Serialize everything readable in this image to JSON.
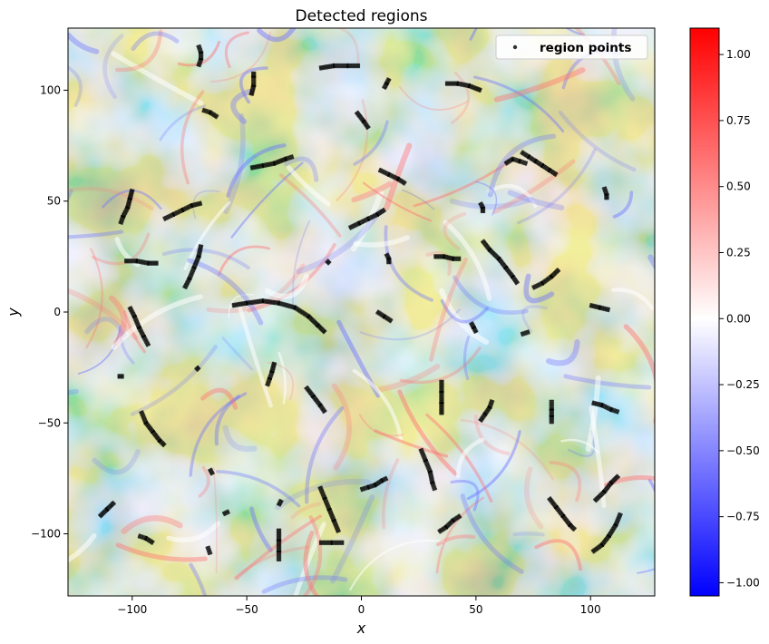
{
  "chart_data": {
    "type": "scatter",
    "title": "Detected regions",
    "xlabel": "x",
    "ylabel": "y",
    "xlim": [
      -128,
      128
    ],
    "ylim": [
      -128,
      128
    ],
    "xticks": [
      -100,
      -50,
      0,
      50,
      100
    ],
    "yticks": [
      -100,
      -50,
      0,
      50,
      100
    ],
    "xtick_labels": [
      "−100",
      "−50",
      "0",
      "50",
      "100"
    ],
    "ytick_labels": [
      "−100",
      "−50",
      "0",
      "50",
      "100"
    ],
    "legend": {
      "label": "region points",
      "placement": "upper-right"
    },
    "colormap": "bwr",
    "colorbar": {
      "range": [
        -1.05,
        1.1
      ],
      "ticks": [
        1.0,
        0.75,
        0.5,
        0.25,
        0.0,
        -0.25,
        -0.5,
        -0.75,
        -1.0
      ],
      "tick_labels": [
        "1.00",
        "0.75",
        "0.50",
        "0.25",
        "0.00",
        "−0.25",
        "−0.50",
        "−0.75",
        "−1.00"
      ],
      "color_min": "#0000ff",
      "color_mid": "#ffffff",
      "color_max": "#ff0000"
    },
    "point_color": "#000000",
    "regions": [
      {
        "points": [
          [
            -71,
            111
          ],
          [
            -70,
            114
          ],
          [
            -70,
            117
          ],
          [
            -71,
            120
          ]
        ]
      },
      {
        "points": [
          [
            -18,
            110
          ],
          [
            -12,
            111
          ],
          [
            -6,
            111
          ],
          [
            -1,
            111
          ]
        ]
      },
      {
        "points": [
          [
            -48,
            98
          ],
          [
            -47,
            102
          ],
          [
            -47,
            106
          ],
          [
            -47,
            108
          ]
        ]
      },
      {
        "points": [
          [
            -69,
            91
          ],
          [
            -66,
            90
          ],
          [
            -63,
            88
          ]
        ]
      },
      {
        "points": [
          [
            -2,
            90
          ],
          [
            1,
            86
          ],
          [
            3,
            83
          ]
        ]
      },
      {
        "points": [
          [
            10,
            101
          ],
          [
            11,
            103
          ],
          [
            12,
            105
          ]
        ]
      },
      {
        "points": [
          [
            37,
            103
          ],
          [
            42,
            103
          ],
          [
            47,
            102
          ],
          [
            52,
            100
          ]
        ]
      },
      {
        "points": [
          [
            -48,
            65
          ],
          [
            -43,
            66
          ],
          [
            -38,
            67
          ],
          [
            -33,
            69
          ],
          [
            -30,
            70
          ]
        ]
      },
      {
        "points": [
          [
            8,
            64
          ],
          [
            12,
            62
          ],
          [
            16,
            60
          ],
          [
            19,
            58
          ]
        ]
      },
      {
        "points": [
          [
            63,
            67
          ],
          [
            66,
            69
          ],
          [
            69,
            68
          ],
          [
            72,
            67
          ]
        ]
      },
      {
        "points": [
          [
            70,
            72
          ],
          [
            73,
            70
          ],
          [
            76,
            68
          ],
          [
            79,
            66
          ],
          [
            82,
            64
          ],
          [
            85,
            62
          ]
        ]
      },
      {
        "points": [
          [
            -100,
            55
          ],
          [
            -101,
            51
          ],
          [
            -102,
            47
          ],
          [
            -104,
            43
          ],
          [
            -105,
            40
          ]
        ]
      },
      {
        "points": [
          [
            -86,
            42
          ],
          [
            -82,
            44
          ],
          [
            -78,
            46
          ],
          [
            -74,
            48
          ],
          [
            -70,
            49
          ]
        ]
      },
      {
        "points": [
          [
            -5,
            38
          ],
          [
            -1,
            40
          ],
          [
            3,
            42
          ],
          [
            7,
            44
          ],
          [
            10,
            46
          ]
        ]
      },
      {
        "points": [
          [
            52,
            49
          ],
          [
            53,
            47
          ],
          [
            53,
            45
          ]
        ]
      },
      {
        "points": [
          [
            106,
            56
          ],
          [
            107,
            53
          ],
          [
            107,
            51
          ]
        ]
      },
      {
        "points": [
          [
            -103,
            23
          ],
          [
            -98,
            23
          ],
          [
            -93,
            22
          ],
          [
            -89,
            22
          ]
        ]
      },
      {
        "points": [
          [
            -70,
            30
          ],
          [
            -71,
            25
          ],
          [
            -73,
            20
          ],
          [
            -75,
            15
          ],
          [
            -77,
            11
          ]
        ]
      },
      {
        "points": [
          [
            -15,
            23
          ],
          [
            -14,
            22
          ]
        ]
      },
      {
        "points": [
          [
            11,
            26
          ],
          [
            12,
            24
          ],
          [
            12,
            22
          ]
        ]
      },
      {
        "points": [
          [
            32,
            25
          ],
          [
            36,
            25
          ],
          [
            40,
            24
          ],
          [
            43,
            24
          ]
        ]
      },
      {
        "points": [
          [
            53,
            32
          ],
          [
            56,
            28
          ],
          [
            60,
            24
          ],
          [
            63,
            20
          ],
          [
            66,
            16
          ],
          [
            68,
            13
          ]
        ]
      },
      {
        "points": [
          [
            75,
            11
          ],
          [
            79,
            13
          ],
          [
            83,
            16
          ],
          [
            86,
            19
          ]
        ]
      },
      {
        "points": [
          [
            -56,
            3
          ],
          [
            -50,
            4
          ],
          [
            -43,
            5
          ],
          [
            -36,
            4
          ],
          [
            -29,
            2
          ],
          [
            -23,
            -2
          ],
          [
            -19,
            -6
          ],
          [
            -16,
            -9
          ]
        ]
      },
      {
        "points": [
          [
            7,
            0
          ],
          [
            10,
            -2
          ],
          [
            13,
            -4
          ]
        ]
      },
      {
        "points": [
          [
            -101,
            2
          ],
          [
            -99,
            -2
          ],
          [
            -97,
            -7
          ],
          [
            -95,
            -11
          ],
          [
            -93,
            -15
          ]
        ]
      },
      {
        "points": [
          [
            48,
            -5
          ],
          [
            49,
            -7
          ],
          [
            50,
            -9
          ]
        ]
      },
      {
        "points": [
          [
            70,
            -10
          ],
          [
            73,
            -9
          ]
        ]
      },
      {
        "points": [
          [
            100,
            3
          ],
          [
            104,
            2
          ],
          [
            108,
            1
          ]
        ]
      },
      {
        "points": [
          [
            -106,
            -29
          ],
          [
            -104,
            -29
          ]
        ]
      },
      {
        "points": [
          [
            -72,
            -26
          ],
          [
            -71,
            -25
          ]
        ]
      },
      {
        "points": [
          [
            -38,
            -23
          ],
          [
            -39,
            -27
          ],
          [
            -40,
            -30
          ],
          [
            -41,
            -33
          ]
        ]
      },
      {
        "points": [
          [
            -24,
            -34
          ],
          [
            -21,
            -38
          ],
          [
            -18,
            -42
          ],
          [
            -16,
            -45
          ]
        ]
      },
      {
        "points": [
          [
            -96,
            -45
          ],
          [
            -94,
            -50
          ],
          [
            -91,
            -54
          ],
          [
            -88,
            -58
          ],
          [
            -86,
            -60
          ]
        ]
      },
      {
        "points": [
          [
            35,
            -31
          ],
          [
            35,
            -36
          ],
          [
            35,
            -41
          ],
          [
            35,
            -46
          ]
        ]
      },
      {
        "points": [
          [
            52,
            -49
          ],
          [
            54,
            -46
          ],
          [
            56,
            -43
          ],
          [
            57,
            -40
          ]
        ]
      },
      {
        "points": [
          [
            83,
            -40
          ],
          [
            83,
            -44
          ],
          [
            83,
            -47
          ],
          [
            83,
            -50
          ]
        ]
      },
      {
        "points": [
          [
            101,
            -41
          ],
          [
            105,
            -42
          ],
          [
            109,
            -44
          ],
          [
            112,
            -45
          ]
        ]
      },
      {
        "points": [
          [
            -66,
            -71
          ],
          [
            -65,
            -73
          ]
        ]
      },
      {
        "points": [
          [
            26,
            -62
          ],
          [
            28,
            -67
          ],
          [
            30,
            -72
          ],
          [
            31,
            -77
          ],
          [
            32,
            -80
          ]
        ]
      },
      {
        "points": [
          [
            0,
            -80
          ],
          [
            3,
            -79
          ],
          [
            6,
            -78
          ],
          [
            9,
            -76
          ],
          [
            11,
            -75
          ]
        ]
      },
      {
        "points": [
          [
            -114,
            -92
          ],
          [
            -111,
            -89
          ],
          [
            -108,
            -86
          ]
        ]
      },
      {
        "points": [
          [
            -60,
            -91
          ],
          [
            -58,
            -90
          ]
        ]
      },
      {
        "points": [
          [
            -36,
            -87
          ],
          [
            -35,
            -85
          ]
        ]
      },
      {
        "points": [
          [
            -18,
            -79
          ],
          [
            -16,
            -84
          ],
          [
            -14,
            -89
          ],
          [
            -12,
            -94
          ],
          [
            -10,
            -99
          ]
        ]
      },
      {
        "points": [
          [
            82,
            -84
          ],
          [
            85,
            -88
          ],
          [
            88,
            -92
          ],
          [
            91,
            -96
          ],
          [
            93,
            -98
          ]
        ]
      },
      {
        "points": [
          [
            102,
            -85
          ],
          [
            106,
            -81
          ],
          [
            109,
            -77
          ],
          [
            112,
            -74
          ]
        ]
      },
      {
        "points": [
          [
            -97,
            -101
          ],
          [
            -94,
            -102
          ],
          [
            -91,
            -104
          ]
        ]
      },
      {
        "points": [
          [
            -36,
            -98
          ],
          [
            -36,
            -103
          ],
          [
            -36,
            -108
          ],
          [
            -36,
            -112
          ]
        ]
      },
      {
        "points": [
          [
            -18,
            -104
          ],
          [
            -13,
            -104
          ],
          [
            -8,
            -104
          ]
        ]
      },
      {
        "points": [
          [
            34,
            -99
          ],
          [
            37,
            -97
          ],
          [
            40,
            -94
          ],
          [
            43,
            -92
          ]
        ]
      },
      {
        "points": [
          [
            -67,
            -106
          ],
          [
            -66,
            -109
          ]
        ]
      },
      {
        "points": [
          [
            101,
            -108
          ],
          [
            105,
            -105
          ],
          [
            108,
            -101
          ],
          [
            111,
            -96
          ],
          [
            113,
            -91
          ]
        ]
      }
    ]
  }
}
